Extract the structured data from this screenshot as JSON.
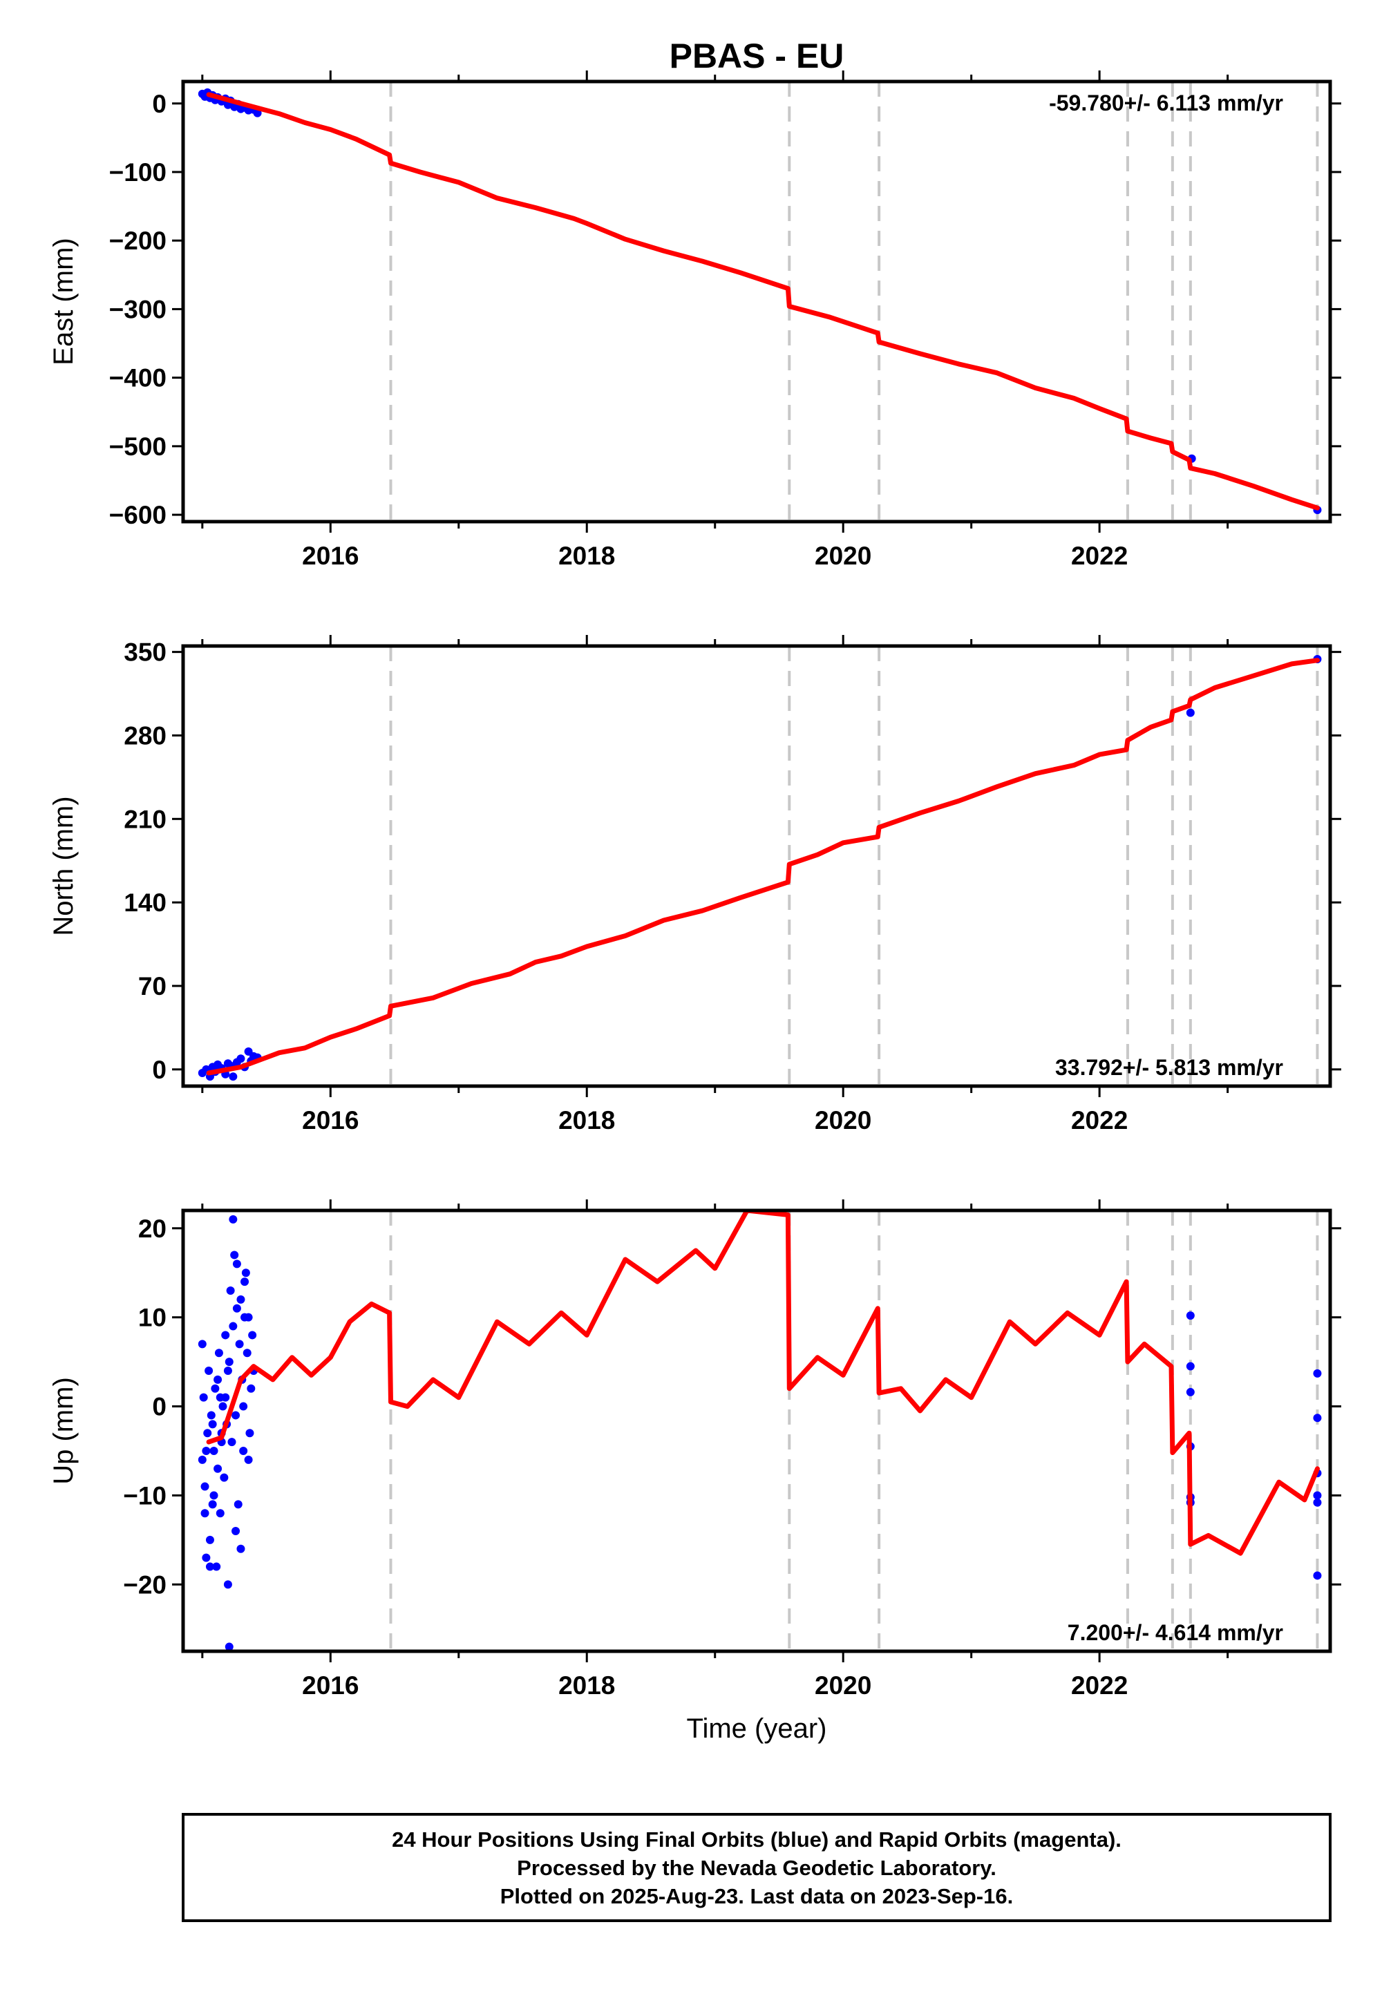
{
  "title": "PBAS - EU",
  "xlabel": "Time (year)",
  "x_ticks": [
    "2016",
    "2018",
    "2020",
    "2022"
  ],
  "footer": {
    "line1": "24 Hour Positions Using Final Orbits (blue) and Rapid Orbits (magenta).",
    "line2": "Processed by the Nevada Geodetic Laboratory.",
    "line3": "Plotted on 2025-Aug-23. Last data on 2023-Sep-16."
  },
  "colors": {
    "model": "#ff0000",
    "final_orbits": "#0000ff",
    "rapid_orbits": "#ff00ff",
    "event_lines": "#c8c8c8",
    "frame": "#000000"
  },
  "chart_data": [
    {
      "type": "scatter",
      "panel": "east",
      "ylabel": "East (mm)",
      "xlim": [
        2014.85,
        2023.8
      ],
      "ylim": [
        -610,
        32
      ],
      "y_ticks": [
        0,
        -100,
        -200,
        -300,
        -400,
        -500,
        -600
      ],
      "y_tick_labels": [
        "0",
        "−100",
        "−200",
        "−300",
        "−400",
        "−500",
        "−600"
      ],
      "rate_text": "-59.780+/- 6.113 mm/yr",
      "rate_position": "top-right",
      "event_lines_x": [
        2016.47,
        2019.58,
        2020.28,
        2022.22,
        2022.57,
        2022.71,
        2023.7
      ],
      "model_series": {
        "name": "model",
        "x": [
          2015.05,
          2015.3,
          2015.6,
          2015.8,
          2016.0,
          2016.2,
          2016.46,
          2016.47,
          2016.7,
          2017.0,
          2017.3,
          2017.6,
          2017.9,
          2018.0,
          2018.3,
          2018.6,
          2018.9,
          2019.2,
          2019.57,
          2019.58,
          2019.9,
          2020.27,
          2020.28,
          2020.6,
          2020.9,
          2021.2,
          2021.5,
          2021.8,
          2022.0,
          2022.21,
          2022.22,
          2022.4,
          2022.56,
          2022.57,
          2022.7,
          2022.71,
          2022.9,
          2023.2,
          2023.5,
          2023.7
        ],
        "y": [
          13,
          0,
          -15,
          -28,
          -38,
          -52,
          -75,
          -87,
          -100,
          -115,
          -138,
          -152,
          -168,
          -175,
          -198,
          -215,
          -230,
          -247,
          -270,
          -296,
          -312,
          -335,
          -348,
          -365,
          -380,
          -393,
          -415,
          -430,
          -445,
          -460,
          -478,
          -488,
          -496,
          -508,
          -520,
          -532,
          -540,
          -558,
          -578,
          -590
        ]
      },
      "final_orbits_points": {
        "x": [
          2015.0,
          2015.02,
          2015.04,
          2015.06,
          2015.08,
          2015.1,
          2015.12,
          2015.15,
          2015.18,
          2015.2,
          2015.22,
          2015.25,
          2015.28,
          2015.3,
          2015.33,
          2015.36,
          2015.4,
          2015.43,
          2022.72,
          2023.7
        ],
        "y": [
          14,
          10,
          16,
          8,
          12,
          5,
          9,
          3,
          7,
          -2,
          4,
          -5,
          -1,
          -8,
          -6,
          -10,
          -9,
          -14,
          -518,
          -593
        ]
      }
    },
    {
      "type": "scatter",
      "panel": "north",
      "ylabel": "North (mm)",
      "xlim": [
        2014.85,
        2023.8
      ],
      "ylim": [
        -14,
        355
      ],
      "y_ticks": [
        0,
        70,
        140,
        210,
        280,
        350
      ],
      "y_tick_labels": [
        "0",
        "70",
        "140",
        "210",
        "280",
        "350"
      ],
      "rate_text": "33.792+/- 5.813 mm/yr",
      "rate_position": "bottom-right",
      "event_lines_x": [
        2016.47,
        2019.58,
        2020.28,
        2022.22,
        2022.57,
        2022.71,
        2023.7
      ],
      "model_series": {
        "name": "model",
        "x": [
          2015.05,
          2015.3,
          2015.6,
          2015.8,
          2016.0,
          2016.2,
          2016.46,
          2016.47,
          2016.8,
          2017.1,
          2017.4,
          2017.6,
          2017.8,
          2018.0,
          2018.3,
          2018.6,
          2018.9,
          2019.2,
          2019.57,
          2019.58,
          2019.8,
          2020.0,
          2020.27,
          2020.28,
          2020.6,
          2020.9,
          2021.2,
          2021.5,
          2021.8,
          2022.0,
          2022.21,
          2022.22,
          2022.4,
          2022.56,
          2022.57,
          2022.7,
          2022.71,
          2022.9,
          2023.2,
          2023.5,
          2023.7
        ],
        "y": [
          -3,
          2,
          14,
          18,
          27,
          34,
          45,
          53,
          60,
          72,
          80,
          90,
          95,
          103,
          112,
          125,
          133,
          144,
          157,
          172,
          180,
          190,
          195,
          203,
          215,
          225,
          237,
          248,
          255,
          264,
          268,
          276,
          287,
          293,
          300,
          305,
          310,
          320,
          330,
          340,
          343
        ]
      },
      "final_orbits_points": {
        "x": [
          2015.0,
          2015.03,
          2015.06,
          2015.08,
          2015.1,
          2015.12,
          2015.15,
          2015.18,
          2015.2,
          2015.22,
          2015.24,
          2015.27,
          2015.3,
          2015.33,
          2015.36,
          2015.38,
          2015.4,
          2015.43,
          2022.71,
          2023.7
        ],
        "y": [
          -3,
          0,
          -6,
          2,
          -2,
          4,
          1,
          -4,
          5,
          3,
          -6,
          6,
          9,
          2,
          15,
          7,
          11,
          10,
          299,
          344
        ]
      }
    },
    {
      "type": "scatter",
      "panel": "up",
      "ylabel": "Up (mm)",
      "xlim": [
        2014.85,
        2023.8
      ],
      "ylim": [
        -27.5,
        22
      ],
      "y_ticks": [
        20,
        10,
        0,
        -10,
        -20
      ],
      "y_tick_labels": [
        "20",
        "10",
        "0",
        "−10",
        "−20"
      ],
      "rate_text": "7.200+/- 4.614 mm/yr",
      "rate_position": "bottom-right",
      "event_lines_x": [
        2016.47,
        2019.58,
        2020.28,
        2022.22,
        2022.57,
        2022.71,
        2023.7
      ],
      "model_series": {
        "name": "model",
        "x": [
          2015.05,
          2015.15,
          2015.3,
          2015.4,
          2015.55,
          2015.7,
          2015.85,
          2016.0,
          2016.15,
          2016.32,
          2016.46,
          2016.47,
          2016.6,
          2016.8,
          2017.0,
          2017.3,
          2017.55,
          2017.8,
          2018.0,
          2018.3,
          2018.55,
          2018.85,
          2019.0,
          2019.25,
          2019.57,
          2019.58,
          2019.8,
          2020.0,
          2020.27,
          2020.28,
          2020.45,
          2020.6,
          2020.8,
          2021.0,
          2021.3,
          2021.5,
          2021.75,
          2022.0,
          2022.21,
          2022.22,
          2022.35,
          2022.56,
          2022.57,
          2022.7,
          2022.71,
          2022.85,
          2023.1,
          2023.4,
          2023.6,
          2023.7
        ],
        "y": [
          -4,
          -3.5,
          3,
          4.5,
          3,
          5.5,
          3.5,
          5.5,
          9.5,
          11.5,
          10.5,
          0.5,
          0,
          3,
          1,
          9.5,
          7,
          10.5,
          8,
          16.5,
          14,
          17.5,
          15.5,
          22,
          21.5,
          2,
          5.5,
          3.5,
          11,
          1.5,
          2,
          -0.5,
          3,
          1,
          9.5,
          7,
          10.5,
          8,
          14,
          5,
          7,
          4.5,
          -5.2,
          -3,
          -15.5,
          -14.5,
          -16.5,
          -8.5,
          -10.5,
          -7
        ]
      },
      "final_orbits_points": {
        "x": [
          2015.0,
          2015.01,
          2015.02,
          2015.03,
          2015.04,
          2015.05,
          2015.06,
          2015.07,
          2015.08,
          2015.09,
          2015.1,
          2015.11,
          2015.12,
          2015.13,
          2015.14,
          2015.15,
          2015.16,
          2015.17,
          2015.18,
          2015.19,
          2015.2,
          2015.21,
          2015.22,
          2015.23,
          2015.24,
          2015.25,
          2015.26,
          2015.27,
          2015.28,
          2015.29,
          2015.3,
          2015.31,
          2015.32,
          2015.33,
          2015.34,
          2015.35,
          2015.36,
          2015.37,
          2015.38,
          2015.4,
          2015.0,
          2015.03,
          2015.06,
          2015.09,
          2015.12,
          2015.15,
          2015.18,
          2015.21,
          2015.24,
          2015.27,
          2015.3,
          2015.33,
          2015.36,
          2015.39,
          2015.02,
          2015.08,
          2015.14,
          2015.2,
          2015.26,
          2015.32,
          2022.71,
          2022.71,
          2022.71,
          2022.71,
          2022.71,
          2022.71,
          2023.7,
          2023.7,
          2023.7,
          2023.7,
          2023.7,
          2023.7
        ],
        "y": [
          -6,
          1,
          -9,
          -17,
          -3,
          4,
          -15,
          -1,
          -11,
          -5,
          2,
          -18,
          -7,
          6,
          -12,
          -3,
          0,
          -8,
          8,
          -2,
          -20,
          5,
          13,
          -4,
          9,
          17,
          -1,
          16,
          -11,
          7,
          12,
          3,
          -5,
          14,
          15,
          6,
          10,
          -3,
          2,
          4,
          7,
          -5,
          -18,
          -10,
          3,
          -4,
          1,
          -27,
          21,
          11,
          -16,
          10,
          -6,
          8,
          -12,
          -2,
          1,
          4,
          -14,
          0,
          10.2,
          4.5,
          1.6,
          -4.5,
          -10.2,
          -10.8,
          3.7,
          -1.3,
          -7.5,
          -10,
          -10.8,
          -19
        ]
      }
    }
  ]
}
